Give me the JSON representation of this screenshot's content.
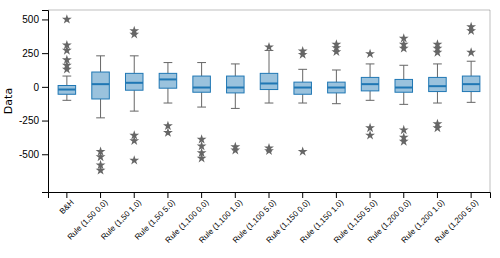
{
  "chart_data": {
    "type": "box",
    "categories": [
      "B&H",
      "Rule (1,50 0.0)",
      "Rule (1,50 1.0)",
      "Rule (1,50 5.0)",
      "Rule (1,100 0.0)",
      "Rule (1,100 1.0)",
      "Rule (1,100 5.0)",
      "Rule (1,150 0.0)",
      "Rule (1,150 1.0)",
      "Rule (1,150 5.0)",
      "Rule (1,200 0.0)",
      "Rule (1,200 1.0)",
      "Rule (1,200 5.0)"
    ],
    "boxes": [
      {
        "q1": -55,
        "med": -20,
        "q3": 10,
        "whislo": -100,
        "whishi": 80,
        "fliers": [
          130,
          160,
          200,
          270,
          310,
          500
        ]
      },
      {
        "q1": -90,
        "med": 20,
        "q3": 110,
        "whislo": -230,
        "whishi": 230,
        "fliers": [
          -480,
          -520,
          -580,
          -620
        ]
      },
      {
        "q1": -25,
        "med": 30,
        "q3": 100,
        "whislo": -180,
        "whishi": 230,
        "fliers": [
          390,
          415,
          -360,
          -400,
          -545
        ]
      },
      {
        "q1": -10,
        "med": 55,
        "q3": 100,
        "whislo": -120,
        "whishi": 180,
        "fliers": [
          -290,
          -340
        ]
      },
      {
        "q1": -40,
        "med": -5,
        "q3": 80,
        "whislo": -150,
        "whishi": 180,
        "fliers": [
          -390,
          -440,
          -490,
          -530
        ]
      },
      {
        "q1": -45,
        "med": -5,
        "q3": 80,
        "whislo": -160,
        "whishi": 170,
        "fliers": [
          -445,
          -470
        ]
      },
      {
        "q1": -20,
        "med": 25,
        "q3": 100,
        "whislo": -120,
        "whishi": 270,
        "fliers": [
          295,
          -455,
          -475
        ]
      },
      {
        "q1": -55,
        "med": -5,
        "q3": 35,
        "whislo": -120,
        "whishi": 130,
        "fliers": [
          240,
          265,
          -480
        ]
      },
      {
        "q1": -45,
        "med": -5,
        "q3": 35,
        "whislo": -125,
        "whishi": 125,
        "fliers": [
          260,
          290,
          315
        ]
      },
      {
        "q1": -30,
        "med": 20,
        "q3": 70,
        "whislo": -100,
        "whishi": 170,
        "fliers": [
          245,
          -305,
          -360
        ]
      },
      {
        "q1": -40,
        "med": -5,
        "q3": 55,
        "whislo": -130,
        "whishi": 160,
        "fliers": [
          285,
          315,
          360,
          -320,
          -375,
          -405
        ]
      },
      {
        "q1": -35,
        "med": 5,
        "q3": 70,
        "whislo": -120,
        "whishi": 170,
        "fliers": [
          255,
          285,
          315,
          -275,
          -305
        ]
      },
      {
        "q1": -35,
        "med": 20,
        "q3": 80,
        "whislo": -115,
        "whishi": 190,
        "fliers": [
          255,
          415,
          445
        ]
      }
    ],
    "ylabel": "Data",
    "ylim": [
      -780,
      570
    ],
    "yticks": [
      -500,
      -250,
      0,
      250,
      500
    ],
    "marker": "star",
    "grid": false
  }
}
